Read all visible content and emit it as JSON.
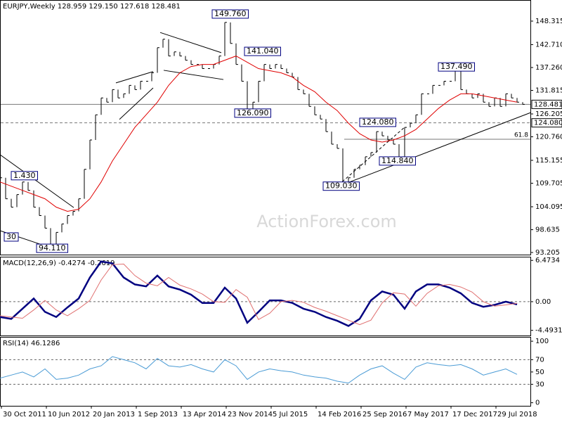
{
  "watermark": "ActionForex.com",
  "chart_data": [
    {
      "type": "price",
      "title": "EURJPY,Weekly 128.959 129.150 127.618 128.481",
      "color": "#000000",
      "xlim": [
        0,
        377.5
      ],
      "ylim": [
        92.7,
        153.34
      ],
      "yticks": [
        148.315,
        {
          "value": 142.71,
          "label": "142.710"
        },
        {
          "value": 137.26,
          "label": "137.260"
        },
        131.815,
        126.205,
        {
          "value": 120.76,
          "label": "120.760"
        },
        115.155,
        109.705,
        104.095,
        98.635,
        93.205
      ],
      "x": [
        0,
        4,
        8,
        12,
        16,
        20,
        24,
        28,
        32,
        36,
        40,
        44,
        48,
        52,
        56,
        60,
        64,
        68,
        72,
        76,
        80,
        84,
        88,
        92,
        96,
        100,
        104,
        108,
        112,
        116,
        120,
        124,
        128,
        132,
        136,
        140,
        144,
        148,
        152,
        156,
        160,
        164,
        168,
        172,
        176,
        180,
        184,
        188,
        192,
        196,
        200,
        204,
        208,
        212,
        216,
        220,
        224,
        228,
        232,
        236,
        240,
        244,
        248,
        252,
        256,
        260,
        264,
        268,
        272,
        276,
        280,
        284,
        288,
        292,
        296,
        300,
        304,
        308,
        312,
        316,
        320,
        324,
        328,
        332,
        336,
        340,
        344,
        348,
        352,
        356,
        360,
        364,
        368,
        372
      ],
      "values": [
        111,
        106,
        104,
        107,
        110,
        108,
        104,
        102,
        99,
        95,
        98,
        100,
        102,
        103,
        106,
        113,
        120,
        126,
        130,
        129,
        132,
        130,
        131,
        133,
        132,
        134,
        134,
        136,
        142,
        144,
        140,
        141,
        140,
        139,
        138,
        138,
        137,
        137,
        138,
        140,
        148,
        143,
        138,
        134,
        127,
        129,
        134,
        138,
        137,
        138,
        137,
        136,
        135,
        132,
        131,
        128,
        126,
        125,
        122,
        119,
        118,
        110,
        111,
        113,
        114,
        116,
        117,
        122,
        121,
        120,
        119,
        115.5,
        123,
        124,
        126,
        131,
        131,
        133,
        133,
        134,
        134,
        136.5,
        132,
        131,
        130,
        131,
        129,
        128,
        130,
        128,
        131,
        130,
        129,
        128.481
      ],
      "ma_color": "#e00000",
      "ma_x": [
        0,
        8,
        16,
        24,
        32,
        40,
        48,
        56,
        64,
        72,
        80,
        88,
        96,
        104,
        112,
        120,
        128,
        136,
        144,
        152,
        160,
        168,
        176,
        184,
        192,
        200,
        208,
        216,
        224,
        232,
        240,
        248,
        256,
        264,
        272,
        280,
        288,
        296,
        304,
        312,
        320,
        328,
        336,
        344,
        352,
        360,
        368
      ],
      "ma_values": [
        110,
        109,
        108,
        107,
        106,
        104,
        103,
        103.5,
        106,
        110,
        115,
        119,
        123,
        126,
        129,
        133,
        136,
        137.5,
        138,
        138,
        139,
        140,
        138.5,
        137,
        136.5,
        136,
        135,
        133,
        131.5,
        129,
        127,
        124,
        121.5,
        120,
        119.5,
        120,
        121,
        122.5,
        125,
        127.5,
        129.5,
        131,
        131,
        130.5,
        130,
        129.5,
        129
      ],
      "levels": [
        {
          "value": 128.481,
          "label": "128.481",
          "dash": false
        },
        {
          "value": 124.08,
          "label": "124.080",
          "dash": true
        }
      ],
      "fib": {
        "label": "61.8",
        "value": 120.17,
        "x": 245
      },
      "trendlines": [
        {
          "x": [
            0,
            52.5
          ],
          "y": [
            116.5,
            103.9
          ],
          "dash": false
        },
        {
          "x": [
            0,
            40
          ],
          "y": [
            98.4,
            93.9
          ],
          "dash": false
        },
        {
          "x": [
            82.5,
            109
          ],
          "y": [
            133.6,
            136.3
          ],
          "dash": false
        },
        {
          "x": [
            85,
            109
          ],
          "y": [
            124.9,
            132.4
          ],
          "dash": false
        },
        {
          "x": [
            114,
            157.5
          ],
          "y": [
            145.6,
            140.8
          ],
          "dash": false
        },
        {
          "x": [
            116.5,
            159
          ],
          "y": [
            136.6,
            134.4
          ],
          "dash": false
        },
        {
          "x": [
            243.5,
            377.5
          ],
          "y": [
            109.3,
            126.5
          ],
          "dash": false
        },
        {
          "x": [
            241,
            287.5
          ],
          "y": [
            109.3,
            122.9
          ],
          "dash": true
        }
      ],
      "annotations": [
        {
          "text": "149.760",
          "x": 151,
          "y": 150.0
        },
        {
          "text": "141.040",
          "x": 174,
          "y": 141.1
        },
        {
          "text": "126.090",
          "x": 167,
          "y": 126.4
        },
        {
          "text": "137.490",
          "x": 312,
          "y": 137.4
        },
        {
          "text": "124.080",
          "x": 256,
          "y": 124.2
        },
        {
          "text": "114.840",
          "x": 270,
          "y": 115.0
        },
        {
          "text": "109.030",
          "x": 230,
          "y": 109.0
        },
        {
          "text": "94.110",
          "x": 26,
          "y": 94.2
        },
        {
          "text": "1.430",
          "x": 8,
          "y": 111.5
        },
        {
          "text": "30",
          "x": 3,
          "y": 96.9
        }
      ]
    },
    {
      "type": "line",
      "title": "MACD(12,26,9) -0.4274 -0.2619",
      "xlim": [
        0,
        377.5
      ],
      "ylim": [
        -5.3,
        7.05
      ],
      "yticks": [
        6.4734,
        {
          "value": 0,
          "label": "0.00"
        },
        -4.4931
      ],
      "dashed_levels": [
        0
      ],
      "x": [
        0,
        8,
        16,
        24,
        32,
        40,
        48,
        56,
        64,
        72,
        80,
        88,
        96,
        104,
        112,
        120,
        128,
        136,
        144,
        152,
        160,
        168,
        176,
        184,
        192,
        200,
        208,
        216,
        224,
        232,
        240,
        248,
        256,
        264,
        272,
        280,
        288,
        296,
        304,
        312,
        320,
        328,
        336,
        344,
        352,
        360,
        368
      ],
      "series": [
        {
          "color": "#000080",
          "width": 2.5,
          "values": [
            -2.4,
            -2.7,
            -1.1,
            0.5,
            -1.6,
            -2.4,
            -0.9,
            0.5,
            3.8,
            6.3,
            6,
            3.8,
            2.7,
            2.4,
            4.1,
            2.4,
            1.9,
            1.1,
            -0.2,
            -0.2,
            2.2,
            0.5,
            -3.3,
            -1.6,
            0.2,
            0.2,
            -0.2,
            -1.1,
            -1.6,
            -2.4,
            -3,
            -3.8,
            -2.7,
            0.2,
            1.6,
            1.1,
            -1.1,
            1.6,
            2.7,
            2.7,
            2.2,
            1.3,
            -0.2,
            -0.8,
            -0.5,
            0,
            -0.4274
          ]
        },
        {
          "color": "#e07070",
          "width": 1,
          "values": [
            -2.2,
            -2.4,
            -2.6,
            -1.3,
            0.2,
            -1.3,
            -2.2,
            -1.1,
            0.2,
            3.4,
            5.8,
            5.9,
            4.1,
            2.9,
            2.5,
            3.8,
            2.6,
            2,
            1.2,
            0,
            -0.1,
            1.9,
            0.7,
            -2.8,
            -1.8,
            0,
            0.2,
            -0.1,
            -0.9,
            -1.5,
            -2.2,
            -2.9,
            -3.6,
            -2.9,
            -0.2,
            1.4,
            1.2,
            -0.7,
            1.3,
            2.5,
            2.7,
            2.3,
            1.5,
            0,
            -0.7,
            -0.5,
            -0.2619
          ]
        }
      ]
    },
    {
      "type": "line",
      "title": "RSI(14) 46.1286",
      "xlim": [
        0,
        377.5
      ],
      "ylim": [
        -5,
        107
      ],
      "yticks": [
        100,
        70,
        50,
        30,
        0
      ],
      "dashed_levels": [
        70,
        30
      ],
      "xticks": [
        {
          "value": 1,
          "label": "30 Oct 2011"
        },
        {
          "value": 33,
          "label": "10 Jun 2012"
        },
        {
          "value": 65,
          "label": "20 Jan 2013"
        },
        {
          "value": 97,
          "label": "1 Sep 2013"
        },
        {
          "value": 129,
          "label": "13 Apr 2014"
        },
        {
          "value": 161,
          "label": "23 Nov 2014"
        },
        {
          "value": 193,
          "label": "5 Jul 2015"
        },
        {
          "value": 225,
          "label": "14 Feb 2016"
        },
        {
          "value": 257,
          "label": "25 Sep 2016"
        },
        {
          "value": 289,
          "label": "7 May 2017"
        },
        {
          "value": 321,
          "label": "17 Dec 2017"
        },
        {
          "value": 353,
          "label": "29 Jul 2018"
        }
      ],
      "x": [
        0,
        8,
        16,
        24,
        32,
        40,
        48,
        56,
        64,
        72,
        80,
        88,
        96,
        104,
        112,
        120,
        128,
        136,
        144,
        152,
        160,
        168,
        176,
        184,
        192,
        200,
        208,
        216,
        224,
        232,
        240,
        248,
        256,
        264,
        272,
        280,
        288,
        296,
        304,
        312,
        320,
        328,
        336,
        344,
        352,
        360,
        368
      ],
      "series": [
        {
          "color": "#4a9bd5",
          "width": 1,
          "values": [
            40,
            45,
            50,
            42,
            55,
            38,
            40,
            45,
            55,
            60,
            75,
            70,
            65,
            55,
            72,
            60,
            58,
            62,
            55,
            50,
            70,
            60,
            38,
            50,
            55,
            52,
            50,
            45,
            42,
            40,
            35,
            32,
            45,
            55,
            60,
            48,
            38,
            58,
            65,
            62,
            60,
            62,
            55,
            45,
            50,
            55,
            46.1286
          ]
        }
      ]
    }
  ]
}
